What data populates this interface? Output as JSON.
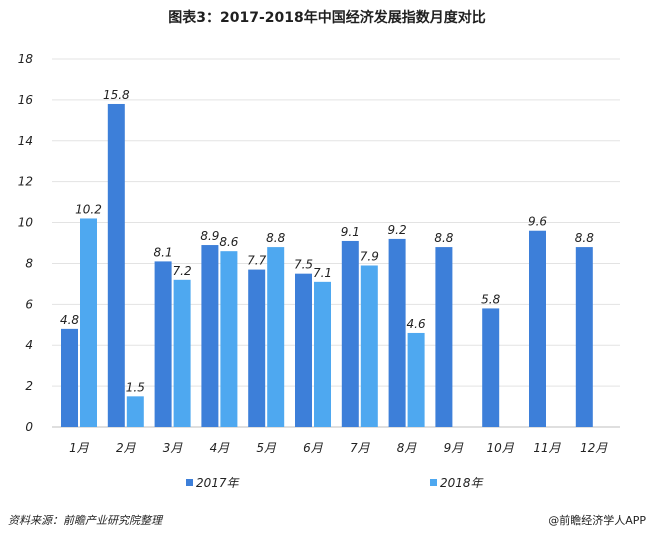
{
  "chart_data": {
    "type": "bar",
    "title": "图表3：2017-2018年中国经济发展指数月度对比",
    "categories": [
      "1月",
      "2月",
      "3月",
      "4月",
      "5月",
      "6月",
      "7月",
      "8月",
      "9月",
      "10月",
      "11月",
      "12月"
    ],
    "series": [
      {
        "name": "2017年",
        "color": "#3d7fd9",
        "values": [
          4.8,
          15.8,
          8.1,
          8.9,
          7.7,
          7.5,
          9.1,
          9.2,
          8.8,
          5.8,
          9.6,
          8.8
        ]
      },
      {
        "name": "2018年",
        "color": "#4ea8f0",
        "values": [
          10.2,
          1.5,
          7.2,
          8.6,
          8.8,
          7.1,
          7.9,
          4.6,
          null,
          null,
          null,
          null
        ]
      }
    ],
    "y_ticks": [
      0,
      2,
      4,
      6,
      8,
      10,
      12,
      14,
      16,
      18
    ],
    "ylim": [
      0,
      18
    ],
    "xlabel": "",
    "ylabel": "",
    "grid": true,
    "legend": "bottom"
  },
  "footer": {
    "source": "资料来源：前瞻产业研究院整理",
    "brand": "@前瞻经济学人APP"
  }
}
